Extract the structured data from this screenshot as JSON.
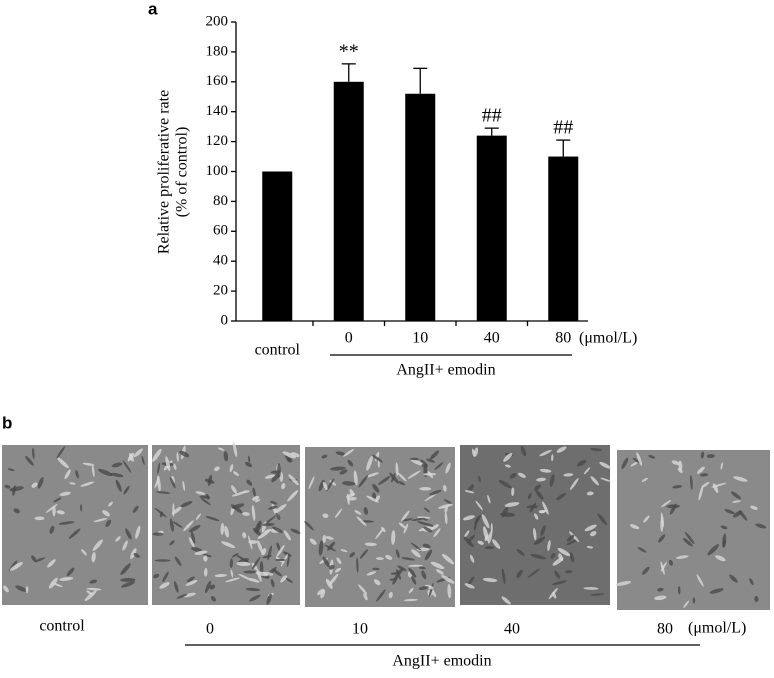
{
  "chart_data": {
    "type": "bar",
    "panel_label": "a",
    "y_label": [
      "Relative proliferative rate",
      "(% of control)"
    ],
    "categories": [
      "control",
      "0",
      "10",
      "40",
      "80"
    ],
    "values": [
      100,
      160,
      152,
      124,
      110
    ],
    "errors": [
      null,
      12,
      17,
      5,
      11
    ],
    "annotations": [
      null,
      "**",
      null,
      "##",
      "##"
    ],
    "unit_label": "(μmol/L)",
    "group_label": "AngII+ emodin",
    "color": "#000000",
    "ylim": [
      0,
      200
    ],
    "yticks": [
      0,
      20,
      40,
      60,
      80,
      100,
      120,
      140,
      160,
      180,
      200
    ]
  },
  "panel_b": {
    "label": "b",
    "images": [
      "control",
      "0",
      "10",
      "40",
      "80"
    ],
    "unit_label": "(μmol/L)",
    "group_label": "AngII+ emodin"
  }
}
